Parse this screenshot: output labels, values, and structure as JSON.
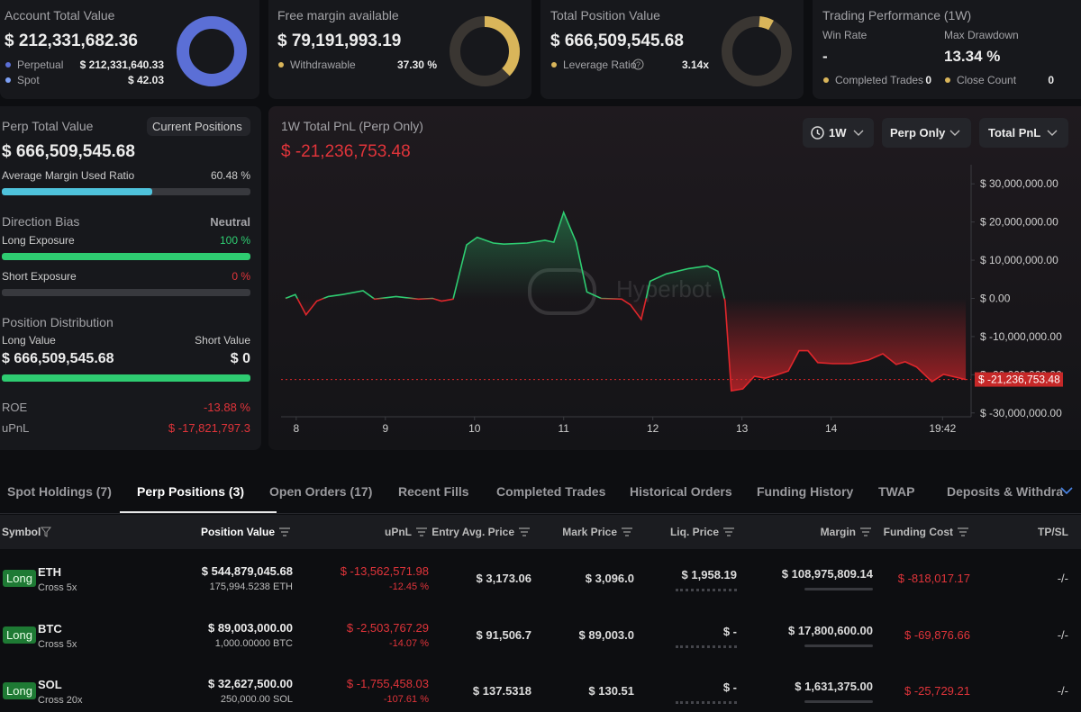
{
  "cards": [
    {
      "title": "Account Total Value",
      "value": "$ 212,331,682.36",
      "items": [
        {
          "label": "Perpetual",
          "value": "$ 212,331,640.33"
        },
        {
          "label": "Spot",
          "value": "$ 42.03"
        }
      ]
    },
    {
      "title": "Free margin available",
      "value": "$ 79,191,993.19",
      "items": [
        {
          "label": "Withdrawable",
          "value": 37.3,
          "value_label": "37.30 %"
        }
      ]
    },
    {
      "title": "Total Position Value",
      "value": "$ 666,509,545.68",
      "items": [
        {
          "label": "Leverage Ratio",
          "value": "3.14x"
        }
      ]
    },
    {
      "title": "Trading Performance (1W)",
      "stats": [
        {
          "label": "Win Rate",
          "value": "-"
        },
        {
          "label": "Max Drawdown",
          "value": "13.34 %"
        }
      ],
      "items": [
        {
          "label": "Completed Trades",
          "value": 0
        },
        {
          "label": "Close Count",
          "value": 0
        }
      ]
    }
  ],
  "summary": {
    "title": "Perp Total Value",
    "button": "Current Positions",
    "value": "$ 666,509,545.68",
    "margin_ratio": {
      "label": "Average Margin Used Ratio",
      "value": 60.48,
      "value_label": "60.48 %"
    },
    "direction": {
      "title": "Direction Bias",
      "value": "Neutral",
      "long": {
        "label": "Long Exposure",
        "value": 100,
        "value_label": "100 %"
      },
      "short": {
        "label": "Short Exposure",
        "value": 0,
        "value_label": "0 %"
      }
    },
    "distribution": {
      "title": "Position Distribution",
      "long_label": "Long Value",
      "short_label": "Short Value",
      "long_value": "$ 666,509,545.68",
      "short_value": "$ 0"
    },
    "roe": {
      "label": "ROE",
      "value": "-13.88 %"
    },
    "upnl": {
      "label": "uPnL",
      "value": "$ -17,821,797.3"
    }
  },
  "chart_data": {
    "type": "line",
    "title": "1W Total PnL (Perp Only)",
    "current_value": "$ -21,236,753.48",
    "controls": [
      "1W",
      "Perp Only",
      "Total PnL"
    ],
    "watermark": "Hyperbot",
    "up_color": "#2ecc71",
    "down_color": "#e0262b",
    "x": [
      7.88,
      7.99,
      8.11,
      8.23,
      8.36,
      8.52,
      8.75,
      8.88,
      9.12,
      9.37,
      9.53,
      9.63,
      9.76,
      9.91,
      10.03,
      10.21,
      10.33,
      10.59,
      10.79,
      10.89,
      11.0,
      11.14,
      11.26,
      11.42,
      11.65,
      11.75,
      11.87,
      11.97,
      12.15,
      12.4,
      12.61,
      12.73,
      12.81,
      12.88,
      13.01,
      13.14,
      13.26,
      13.38,
      13.52,
      13.64,
      13.74,
      13.85,
      14.02,
      14.22,
      14.42,
      14.58,
      14.73,
      14.83,
      14.96,
      15.13,
      15.26,
      15.51
    ],
    "values": [
      0,
      1000000,
      -4300000,
      -700000,
      500000,
      1000000,
      2000000,
      -200000,
      500000,
      -200000,
      0,
      -700000,
      -200000,
      14000000,
      16000000,
      14500000,
      14200000,
      14500000,
      15200000,
      14700000,
      22500000,
      14700000,
      1700000,
      0,
      -200000,
      -1700000,
      -5500000,
      4500000,
      6400000,
      7800000,
      8500000,
      7100000,
      -700000,
      -24200000,
      -23700000,
      -20400000,
      -20900000,
      -20100000,
      -19000000,
      -13700000,
      -13700000,
      -16800000,
      -17100000,
      -17100000,
      -16100000,
      -14500000,
      -17300000,
      -16600000,
      -18000000,
      -21800000,
      -19900000,
      -21236753.48
    ],
    "xlim": [
      7.83,
      15.57
    ],
    "xticks": [
      8,
      9,
      10,
      11,
      12,
      13,
      14,
      {
        "value": 15.25,
        "label": "19:42"
      }
    ],
    "ylim": [
      -31000000,
      35000000
    ],
    "yticks": [
      {
        "value": 30000000,
        "label": "$ 30,000,000.00"
      },
      {
        "value": 20000000,
        "label": "$ 20,000,000.00"
      },
      {
        "value": 10000000,
        "label": "$ 10,000,000.00"
      },
      {
        "value": 0,
        "label": "$ 0.00"
      },
      {
        "value": -10000000,
        "label": "$ -10,000,000.00"
      },
      {
        "value": -20000000,
        "label": "$ -20,000,000.00"
      },
      {
        "value": -30000000,
        "label": "$ -30,000,000.00"
      }
    ]
  },
  "tabs": [
    "Spot Holdings (7)",
    "Perp Positions (3)",
    "Open Orders (17)",
    "Recent Fills",
    "Completed Trades",
    "Historical Orders",
    "Funding History",
    "TWAP",
    "Deposits & Withdra"
  ],
  "table": {
    "columns": [
      "Symbol",
      "Position Value",
      "uPnL",
      "Entry Avg. Price",
      "Mark Price",
      "Liq. Price",
      "Margin",
      "Funding Cost",
      "TP/SL"
    ],
    "rows": [
      {
        "side": "Long",
        "symbol": "ETH",
        "mode": "Cross 5x",
        "position_value": "$ 544,879,045.68",
        "size": "175,994.5238 ETH",
        "upnl": "$ -13,562,571.98",
        "upnl_pct": "-12.45 %",
        "entry": "$ 3,173.06",
        "mark": "$ 3,096.0",
        "liq": "$ 1,958.19",
        "margin": "$ 108,975,809.14",
        "funding": "$ -818,017.17",
        "tpsl": "-/-"
      },
      {
        "side": "Long",
        "symbol": "BTC",
        "mode": "Cross 5x",
        "position_value": "$ 89,003,000.00",
        "size": "1,000.00000 BTC",
        "upnl": "$ -2,503,767.29",
        "upnl_pct": "-14.07 %",
        "entry": "$ 91,506.7",
        "mark": "$ 89,003.0",
        "liq": "$ -",
        "margin": "$ 17,800,600.00",
        "funding": "$ -69,876.66",
        "tpsl": "-/-"
      },
      {
        "side": "Long",
        "symbol": "SOL",
        "mode": "Cross 20x",
        "position_value": "$ 32,627,500.00",
        "size": "250,000.00 SOL",
        "upnl": "$ -1,755,458.03",
        "upnl_pct": "-107.61 %",
        "entry": "$ 137.5318",
        "mark": "$ 130.51",
        "liq": "$ -",
        "margin": "$ 1,631,375.00",
        "funding": "$ -25,729.21",
        "tpsl": "-/-"
      }
    ]
  }
}
